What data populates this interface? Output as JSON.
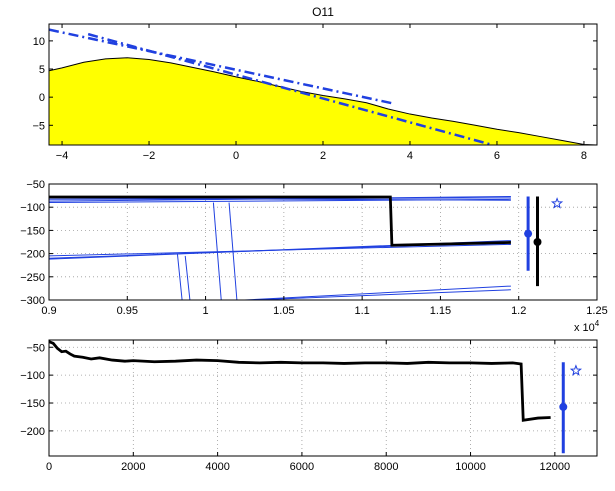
{
  "chart_data": [
    {
      "type": "area",
      "title": "O11",
      "xlim": [
        -4.3,
        8.3
      ],
      "ylim": [
        -8.5,
        13
      ],
      "xticks": [
        -4,
        -2,
        0,
        2,
        4,
        6,
        8
      ],
      "yticks": [
        -5,
        0,
        5,
        10
      ],
      "grid": false,
      "colors": {
        "fill": "#ffff00",
        "outline": "#000000",
        "fit_lines": "#2040e0"
      },
      "series": [
        {
          "kind": "filled-area",
          "x": [
            -4.3,
            -4.0,
            -3.5,
            -3.0,
            -2.5,
            -2.0,
            -1.5,
            -1.0,
            -0.5,
            0,
            0.5,
            1.0,
            1.5,
            2.0,
            2.5,
            3.0,
            3.5,
            4.0,
            4.5,
            5.0,
            5.5,
            6.0,
            6.5,
            7.0,
            7.5,
            8.0,
            8.3
          ],
          "y": [
            4.7,
            5.2,
            6.2,
            6.8,
            7.0,
            6.7,
            6.1,
            5.3,
            4.5,
            3.6,
            2.8,
            1.9,
            1.0,
            0.3,
            -0.3,
            -1.0,
            -2.1,
            -3.0,
            -3.7,
            -4.3,
            -5.0,
            -5.7,
            -6.3,
            -7.0,
            -7.7,
            -8.4,
            -8.5
          ]
        },
        {
          "kind": "dash-dot-line",
          "x": [
            -4.3,
            3.6
          ],
          "y": [
            12.0,
            -1.1
          ]
        },
        {
          "kind": "dash-dot-line",
          "x": [
            -3.4,
            5.9
          ],
          "y": [
            11.2,
            -8.5
          ]
        }
      ]
    },
    {
      "type": "line",
      "xlim": [
        0.9,
        1.25
      ],
      "ylim": [
        -300,
        -50
      ],
      "xticks": [
        0.9,
        0.95,
        1,
        1.05,
        1.1,
        1.15,
        1.2,
        1.25
      ],
      "yticks": [
        -50,
        -100,
        -150,
        -200,
        -250,
        -300
      ],
      "grid": true,
      "colors": {
        "main": "#000000",
        "traces": "#2040e0"
      },
      "series": [
        {
          "kind": "thin-traces",
          "lines": [
            {
              "x": [
                0.9,
                1.195
              ],
              "y": [
                -83,
                -80
              ]
            },
            {
              "x": [
                0.9,
                1.195
              ],
              "y": [
                -87,
                -77
              ]
            },
            {
              "x": [
                0.9,
                1.195
              ],
              "y": [
                -90,
                -83
              ]
            },
            {
              "x": [
                0.9,
                1.195
              ],
              "y": [
                -80,
                -85
              ]
            },
            {
              "x": [
                0.9,
                1.195
              ],
              "y": [
                -210,
                -175
              ]
            },
            {
              "x": [
                0.9,
                1.195
              ],
              "y": [
                -205,
                -180
              ]
            },
            {
              "x": [
                0.9,
                1.195
              ],
              "y": [
                -212,
                -172
              ]
            },
            {
              "x": [
                1.025,
                1.195
              ],
              "y": [
                -300,
                -270
              ]
            },
            {
              "x": [
                1.03,
                1.195
              ],
              "y": [
                -300,
                -278
              ]
            },
            {
              "x": [
                1.005,
                1.01
              ],
              "y": [
                -90,
                -300
              ]
            },
            {
              "x": [
                1.015,
                1.02
              ],
              "y": [
                -90,
                -300
              ]
            },
            {
              "x": [
                0.982,
                0.985
              ],
              "y": [
                -200,
                -300
              ]
            },
            {
              "x": [
                0.987,
                0.99
              ],
              "y": [
                -205,
                -300
              ]
            }
          ]
        },
        {
          "kind": "thick-line",
          "x": [
            0.9,
            1.118,
            1.119,
            1.195
          ],
          "y": [
            -78,
            -78,
            -182,
            -176
          ]
        },
        {
          "kind": "errorbar",
          "color": "#2040e0",
          "x": 1.206,
          "center": -157,
          "low": -237,
          "high": -77
        },
        {
          "kind": "errorbar",
          "color": "#000000",
          "x": 1.212,
          "center": -175,
          "low": -270,
          "high": -77
        },
        {
          "kind": "star",
          "color": "#2040e0",
          "x": 1.2245,
          "y": -92
        }
      ]
    },
    {
      "type": "line",
      "xlim": [
        0,
        13000
      ],
      "ylim": [
        -245,
        -37
      ],
      "xticks": [
        0,
        2000,
        4000,
        6000,
        8000,
        10000,
        12000
      ],
      "xtick_labels": [
        "0",
        "2000",
        "4000",
        "6000",
        "8000",
        "10000",
        "12000"
      ],
      "x_exponent_label": "x 10",
      "x_exponent_power": "4",
      "yticks": [
        -50,
        -100,
        -150,
        -200
      ],
      "grid": true,
      "colors": {
        "main": "#000000",
        "marker": "#2040e0"
      },
      "series": [
        {
          "kind": "thick-line",
          "x": [
            0,
            100,
            200,
            300,
            400,
            500,
            600,
            800,
            1000,
            1200,
            1500,
            1800,
            2000,
            2500,
            3000,
            3500,
            4000,
            4500,
            5000,
            5500,
            6000,
            6500,
            7000,
            7500,
            8000,
            8500,
            9000,
            9500,
            10000,
            10500,
            11000,
            11200,
            11250,
            11600,
            11900
          ],
          "y": [
            -40,
            -43,
            -52,
            -58,
            -57,
            -62,
            -66,
            -68,
            -71,
            -69,
            -73,
            -75,
            -74,
            -76,
            -75,
            -73,
            -74,
            -77,
            -78,
            -77,
            -78,
            -78,
            -79,
            -78,
            -78,
            -79,
            -77,
            -78,
            -78,
            -79,
            -78,
            -80,
            -181,
            -177,
            -176
          ]
        },
        {
          "kind": "errorbar",
          "color": "#2040e0",
          "x": 12200,
          "center": -157,
          "low": -240,
          "high": -77
        },
        {
          "kind": "star",
          "color": "#2040e0",
          "x": 12500,
          "y": -92
        }
      ]
    }
  ]
}
